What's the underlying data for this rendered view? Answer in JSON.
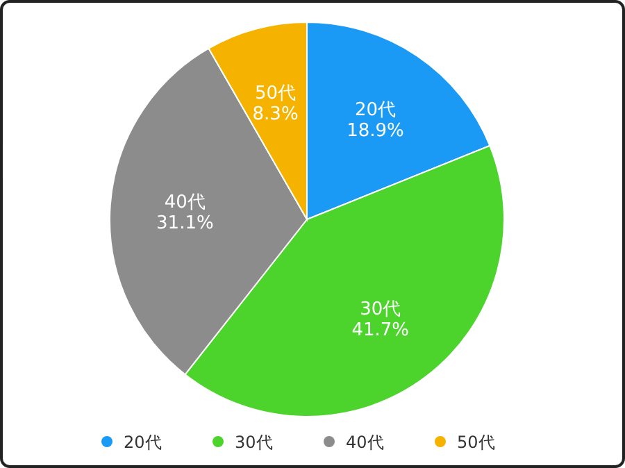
{
  "chart_data": {
    "type": "pie",
    "categories": [
      "20代",
      "30代",
      "40代",
      "50代"
    ],
    "values": [
      18.9,
      41.7,
      31.1,
      8.3
    ],
    "colors": [
      "#1a9af5",
      "#4cd42c",
      "#8c8c8c",
      "#f5b300"
    ],
    "value_labels": [
      "18.9%",
      "41.7%",
      "31.1%",
      "8.3%"
    ],
    "legend": "bottom"
  }
}
